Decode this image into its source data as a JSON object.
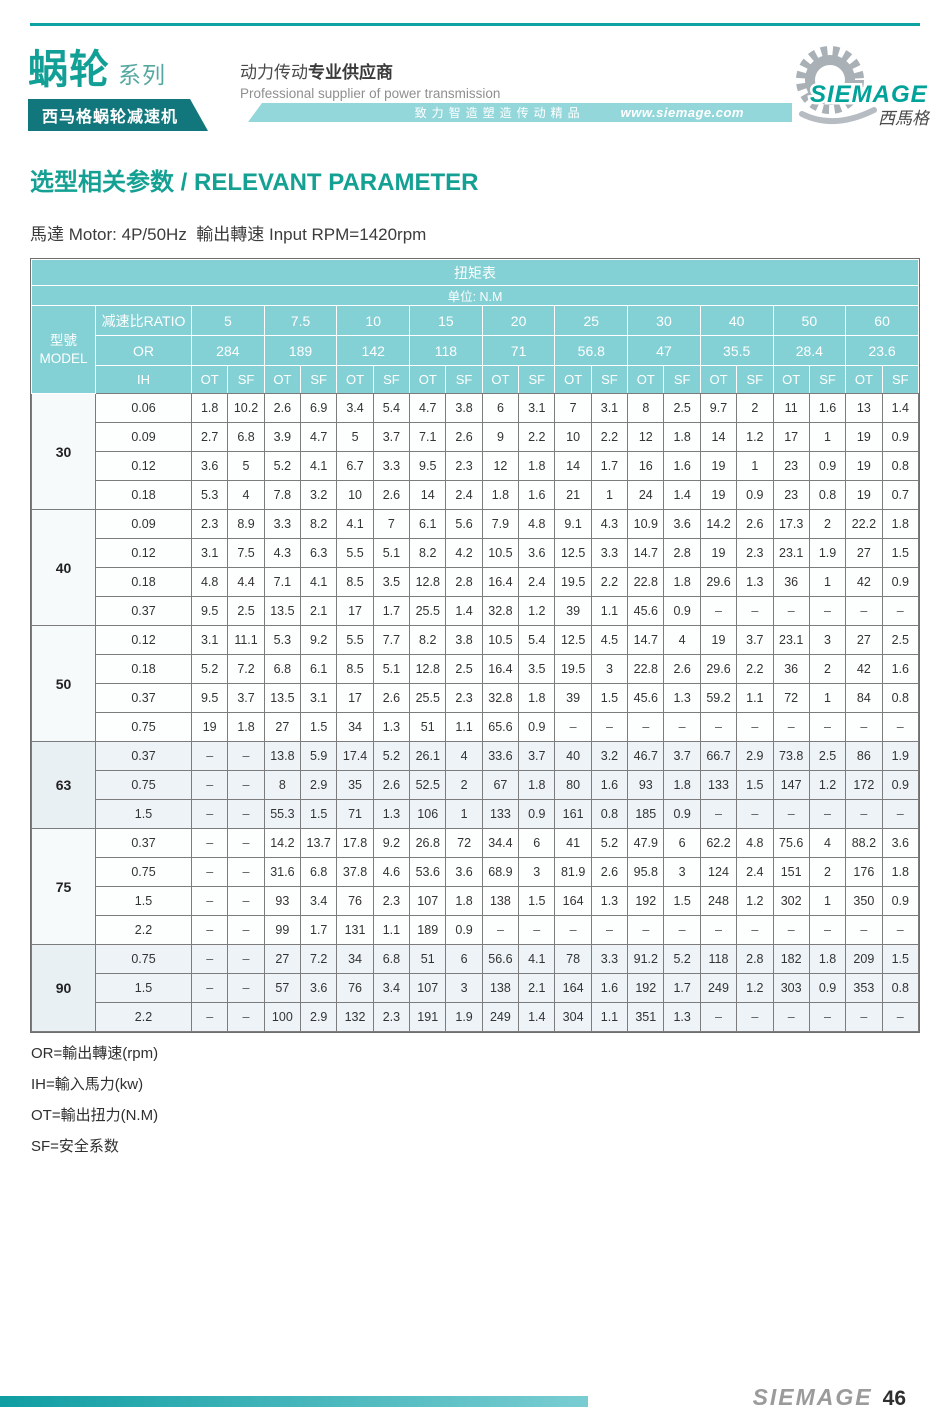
{
  "colors": {
    "accent_teal": "#12a096",
    "dark_teal_bar": "#12777d",
    "banner_teal": "#94d7db",
    "table_header_teal": "#84d1d5",
    "footer_bar_teal": "#0f9ea3",
    "border_gray": "#7c7c7c"
  },
  "header": {
    "series_name": "蜗轮",
    "series_suffix": "系列",
    "series_subtitle": "西马格蜗轮减速机",
    "slogan_regular": "动力传动",
    "slogan_bold": "专业供应商",
    "slogan_en": "Professional supplier of power transmission",
    "banner_text": "致力智造塑造传动精品",
    "website": "www.siemage.com",
    "logo_text": "SIEMAGE",
    "logo_cn": "西馬格"
  },
  "page": {
    "title_cn": "选型相关参数",
    "title_sep": " / ",
    "title_en": "RELEVANT PARAMETER",
    "motor_line": "馬達 Motor: 4P/50Hz  輸出轉速 Input RPM=1420rpm"
  },
  "table": {
    "title": "扭矩表",
    "unit": "单位: N.M",
    "model_header_cn": "型號",
    "model_header_en": "MODEL",
    "ratio_label": "减速比RATIO",
    "or_label": "OR",
    "ih_label": "IH",
    "ot_label": "OT",
    "sf_label": "SF",
    "ratios": [
      "5",
      "7.5",
      "10",
      "15",
      "20",
      "25",
      "30",
      "40",
      "50",
      "60"
    ],
    "or_values": [
      "284",
      "189",
      "142",
      "118",
      "71",
      "56.8",
      "47",
      "35.5",
      "28.4",
      "23.6"
    ],
    "blocks": [
      {
        "model": "30",
        "tinted": false,
        "rows": [
          {
            "ih": "0.06",
            "values": [
              "1.8",
              "10.2",
              "2.6",
              "6.9",
              "3.4",
              "5.4",
              "4.7",
              "3.8",
              "6",
              "3.1",
              "7",
              "3.1",
              "8",
              "2.5",
              "9.7",
              "2",
              "11",
              "1.6",
              "13",
              "1.4"
            ]
          },
          {
            "ih": "0.09",
            "values": [
              "2.7",
              "6.8",
              "3.9",
              "4.7",
              "5",
              "3.7",
              "7.1",
              "2.6",
              "9",
              "2.2",
              "10",
              "2.2",
              "12",
              "1.8",
              "14",
              "1.2",
              "17",
              "1",
              "19",
              "0.9"
            ]
          },
          {
            "ih": "0.12",
            "values": [
              "3.6",
              "5",
              "5.2",
              "4.1",
              "6.7",
              "3.3",
              "9.5",
              "2.3",
              "12",
              "1.8",
              "14",
              "1.7",
              "16",
              "1.6",
              "19",
              "1",
              "23",
              "0.9",
              "19",
              "0.8"
            ]
          },
          {
            "ih": "0.18",
            "values": [
              "5.3",
              "4",
              "7.8",
              "3.2",
              "10",
              "2.6",
              "14",
              "2.4",
              "1.8",
              "1.6",
              "21",
              "1",
              "24",
              "1.4",
              "19",
              "0.9",
              "23",
              "0.8",
              "19",
              "0.7"
            ]
          }
        ]
      },
      {
        "model": "40",
        "tinted": false,
        "rows": [
          {
            "ih": "0.09",
            "values": [
              "2.3",
              "8.9",
              "3.3",
              "8.2",
              "4.1",
              "7",
              "6.1",
              "5.6",
              "7.9",
              "4.8",
              "9.1",
              "4.3",
              "10.9",
              "3.6",
              "14.2",
              "2.6",
              "17.3",
              "2",
              "22.2",
              "1.8"
            ]
          },
          {
            "ih": "0.12",
            "values": [
              "3.1",
              "7.5",
              "4.3",
              "6.3",
              "5.5",
              "5.1",
              "8.2",
              "4.2",
              "10.5",
              "3.6",
              "12.5",
              "3.3",
              "14.7",
              "2.8",
              "19",
              "2.3",
              "23.1",
              "1.9",
              "27",
              "1.5"
            ]
          },
          {
            "ih": "0.18",
            "values": [
              "4.8",
              "4.4",
              "7.1",
              "4.1",
              "8.5",
              "3.5",
              "12.8",
              "2.8",
              "16.4",
              "2.4",
              "19.5",
              "2.2",
              "22.8",
              "1.8",
              "29.6",
              "1.3",
              "36",
              "1",
              "42",
              "0.9"
            ]
          },
          {
            "ih": "0.37",
            "values": [
              "9.5",
              "2.5",
              "13.5",
              "2.1",
              "17",
              "1.7",
              "25.5",
              "1.4",
              "32.8",
              "1.2",
              "39",
              "1.1",
              "45.6",
              "0.9",
              "–",
              "–",
              "–",
              "–",
              "–",
              "–"
            ]
          }
        ]
      },
      {
        "model": "50",
        "tinted": false,
        "rows": [
          {
            "ih": "0.12",
            "values": [
              "3.1",
              "11.1",
              "5.3",
              "9.2",
              "5.5",
              "7.7",
              "8.2",
              "3.8",
              "10.5",
              "5.4",
              "12.5",
              "4.5",
              "14.7",
              "4",
              "19",
              "3.7",
              "23.1",
              "3",
              "27",
              "2.5"
            ]
          },
          {
            "ih": "0.18",
            "values": [
              "5.2",
              "7.2",
              "6.8",
              "6.1",
              "8.5",
              "5.1",
              "12.8",
              "2.5",
              "16.4",
              "3.5",
              "19.5",
              "3",
              "22.8",
              "2.6",
              "29.6",
              "2.2",
              "36",
              "2",
              "42",
              "1.6"
            ]
          },
          {
            "ih": "0.37",
            "values": [
              "9.5",
              "3.7",
              "13.5",
              "3.1",
              "17",
              "2.6",
              "25.5",
              "2.3",
              "32.8",
              "1.8",
              "39",
              "1.5",
              "45.6",
              "1.3",
              "59.2",
              "1.1",
              "72",
              "1",
              "84",
              "0.8"
            ]
          },
          {
            "ih": "0.75",
            "values": [
              "19",
              "1.8",
              "27",
              "1.5",
              "34",
              "1.3",
              "51",
              "1.1",
              "65.6",
              "0.9",
              "–",
              "–",
              "–",
              "–",
              "–",
              "–",
              "–",
              "–",
              "–",
              "–"
            ]
          }
        ]
      },
      {
        "model": "63",
        "tinted": true,
        "rows": [
          {
            "ih": "0.37",
            "values": [
              "–",
              "–",
              "13.8",
              "5.9",
              "17.4",
              "5.2",
              "26.1",
              "4",
              "33.6",
              "3.7",
              "40",
              "3.2",
              "46.7",
              "3.7",
              "66.7",
              "2.9",
              "73.8",
              "2.5",
              "86",
              "1.9"
            ]
          },
          {
            "ih": "0.75",
            "values": [
              "–",
              "–",
              "8",
              "2.9",
              "35",
              "2.6",
              "52.5",
              "2",
              "67",
              "1.8",
              "80",
              "1.6",
              "93",
              "1.8",
              "133",
              "1.5",
              "147",
              "1.2",
              "172",
              "0.9"
            ]
          },
          {
            "ih": "1.5",
            "values": [
              "–",
              "–",
              "55.3",
              "1.5",
              "71",
              "1.3",
              "106",
              "1",
              "133",
              "0.9",
              "161",
              "0.8",
              "185",
              "0.9",
              "–",
              "–",
              "–",
              "–",
              "–",
              "–"
            ]
          }
        ]
      },
      {
        "model": "75",
        "tinted": false,
        "rows": [
          {
            "ih": "0.37",
            "values": [
              "–",
              "–",
              "14.2",
              "13.7",
              "17.8",
              "9.2",
              "26.8",
              "72",
              "34.4",
              "6",
              "41",
              "5.2",
              "47.9",
              "6",
              "62.2",
              "4.8",
              "75.6",
              "4",
              "88.2",
              "3.6"
            ]
          },
          {
            "ih": "0.75",
            "values": [
              "–",
              "–",
              "31.6",
              "6.8",
              "37.8",
              "4.6",
              "53.6",
              "3.6",
              "68.9",
              "3",
              "81.9",
              "2.6",
              "95.8",
              "3",
              "124",
              "2.4",
              "151",
              "2",
              "176",
              "1.8"
            ]
          },
          {
            "ih": "1.5",
            "values": [
              "–",
              "–",
              "93",
              "3.4",
              "76",
              "2.3",
              "107",
              "1.8",
              "138",
              "1.5",
              "164",
              "1.3",
              "192",
              "1.5",
              "248",
              "1.2",
              "302",
              "1",
              "350",
              "0.9"
            ]
          },
          {
            "ih": "2.2",
            "values": [
              "–",
              "–",
              "99",
              "1.7",
              "131",
              "1.1",
              "189",
              "0.9",
              "–",
              "–",
              "–",
              "–",
              "–",
              "–",
              "–",
              "–",
              "–",
              "–",
              "–",
              "–"
            ]
          }
        ]
      },
      {
        "model": "90",
        "tinted": true,
        "rows": [
          {
            "ih": "0.75",
            "values": [
              "–",
              "–",
              "27",
              "7.2",
              "34",
              "6.8",
              "51",
              "6",
              "56.6",
              "4.1",
              "78",
              "3.3",
              "91.2",
              "5.2",
              "118",
              "2.8",
              "182",
              "1.8",
              "209",
              "1.5"
            ]
          },
          {
            "ih": "1.5",
            "values": [
              "–",
              "–",
              "57",
              "3.6",
              "76",
              "3.4",
              "107",
              "3",
              "138",
              "2.1",
              "164",
              "1.6",
              "192",
              "1.7",
              "249",
              "1.2",
              "303",
              "0.9",
              "353",
              "0.8"
            ]
          },
          {
            "ih": "2.2",
            "values": [
              "–",
              "–",
              "100",
              "2.9",
              "132",
              "2.3",
              "191",
              "1.9",
              "249",
              "1.4",
              "304",
              "1.1",
              "351",
              "1.3",
              "–",
              "–",
              "–",
              "–",
              "–",
              "–"
            ]
          }
        ]
      }
    ]
  },
  "legend": {
    "or": "OR=輸出轉速(rpm)",
    "ih": "IH=輸入馬力(kw)",
    "ot": "OT=輸出扭力(N.M)",
    "sf": "SF=安全系数"
  },
  "footer": {
    "brand": "SIEMAGE",
    "page": "46"
  }
}
